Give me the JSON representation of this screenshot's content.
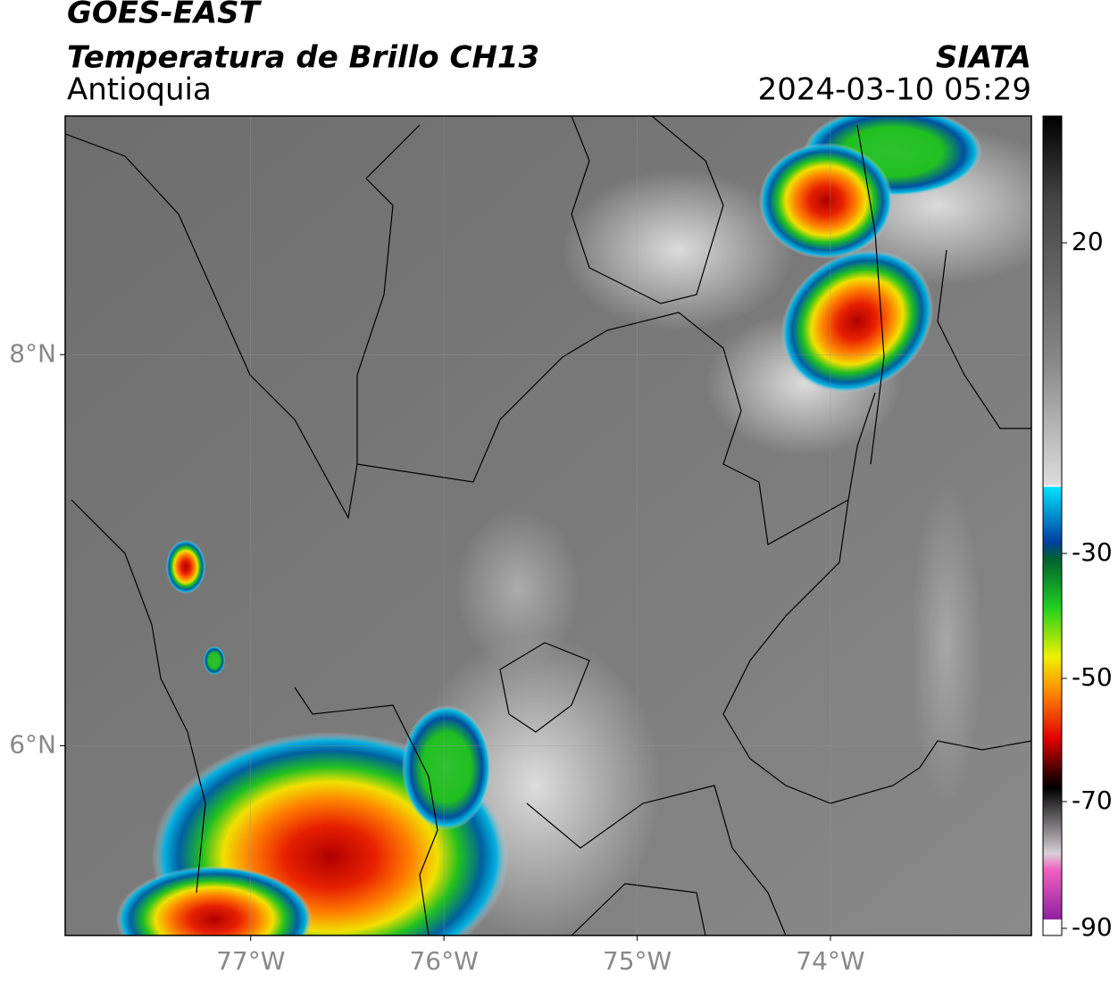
{
  "header": {
    "title": "GOES-EAST",
    "subtitle": "Temperatura de Brillo CH13",
    "source": "SIATA",
    "region": "Antioquia",
    "timestamp": "2024-03-10 05:29"
  },
  "map": {
    "xlim": [
      -77.96,
      -72.96
    ],
    "ylim": [
      5.03,
      9.22
    ],
    "lon_ticks": [
      {
        "value": -77,
        "label": "77°W"
      },
      {
        "value": -76,
        "label": "76°W"
      },
      {
        "value": -75,
        "label": "75°W"
      },
      {
        "value": -74,
        "label": "74°W"
      }
    ],
    "lat_ticks": [
      {
        "value": 8,
        "label": "8°N"
      },
      {
        "value": 6,
        "label": "6°N"
      }
    ]
  },
  "colorbar": {
    "ticks": [
      20,
      -30,
      -50,
      -70,
      -90
    ]
  }
}
